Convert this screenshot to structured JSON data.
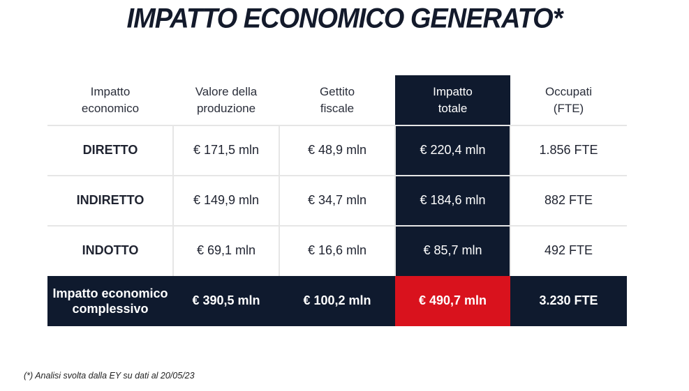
{
  "title": "IMPATTO ECONOMICO GENERATO*",
  "table": {
    "headers": [
      {
        "line1": "Impatto",
        "line2": "economico"
      },
      {
        "line1": "Valore della",
        "line2": "produzione"
      },
      {
        "line1": "Gettito",
        "line2": "fiscale"
      },
      {
        "line1": "Impatto",
        "line2": "totale"
      },
      {
        "line1": "Occupati",
        "line2": "(FTE)"
      }
    ],
    "rows": [
      {
        "label": "DIRETTO",
        "valore": "€ 171,5 mln",
        "gettito": "€ 48,9 mln",
        "totale": "€ 220,4 mln",
        "occupati": "1.856 FTE"
      },
      {
        "label": "INDIRETTO",
        "valore": "€ 149,9 mln",
        "gettito": "€ 34,7 mln",
        "totale": "€ 184,6 mln",
        "occupati": "882 FTE"
      },
      {
        "label": "INDOTTO",
        "valore": "€ 69,1 mln",
        "gettito": "€ 16,6 mln",
        "totale": "€ 85,7 mln",
        "occupati": "492 FTE"
      }
    ],
    "total": {
      "label_line1": "Impatto economico",
      "label_line2": "complessivo",
      "valore": "€ 390,5 mln",
      "gettito": "€ 100,2 mln",
      "totale": "€ 490,7 mln",
      "occupati": "3.230 FTE"
    }
  },
  "footnote": "(*) Analisi svolta dalla EY su dati al 20/05/23",
  "colors": {
    "navy": "#0f1a2e",
    "red": "#d9121d"
  }
}
